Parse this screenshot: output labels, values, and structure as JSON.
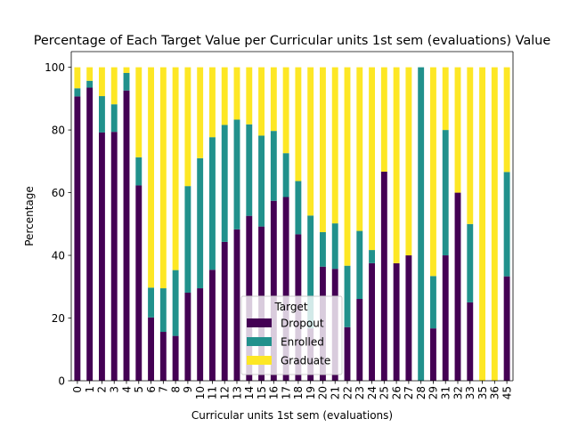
{
  "chart_data": {
    "type": "bar",
    "stacked": true,
    "title": "Percentage of Each Target Value per Curricular units 1st sem (evaluations) Value",
    "xlabel": "Curricular units 1st sem (evaluations)",
    "ylabel": "Percentage",
    "ylim": [
      0,
      105
    ],
    "yticks": [
      0,
      20,
      40,
      60,
      80,
      100
    ],
    "categories": [
      "0",
      "1",
      "2",
      "3",
      "4",
      "5",
      "6",
      "7",
      "8",
      "9",
      "10",
      "11",
      "12",
      "13",
      "14",
      "15",
      "16",
      "17",
      "18",
      "19",
      "20",
      "21",
      "22",
      "23",
      "24",
      "25",
      "26",
      "27",
      "28",
      "29",
      "31",
      "32",
      "33",
      "35",
      "36",
      "45"
    ],
    "series": [
      {
        "name": "Dropout",
        "color": "#440154",
        "values": [
          90.7,
          93.5,
          79.2,
          79.4,
          92.6,
          62.3,
          20.2,
          15.6,
          14.3,
          28.1,
          29.5,
          35.4,
          44.3,
          48.3,
          52.6,
          49.2,
          57.4,
          58.6,
          46.7,
          16.7,
          36.4,
          35.7,
          17.1,
          26.1,
          37.5,
          66.7,
          37.5,
          40.0,
          0.0,
          16.7,
          40.0,
          60.0,
          25.0,
          0.0,
          0.0,
          33.3
        ]
      },
      {
        "name": "Enrolled",
        "color": "#21918c",
        "values": [
          2.6,
          2.2,
          11.6,
          8.8,
          5.6,
          9.0,
          9.5,
          13.9,
          21.0,
          34.0,
          41.5,
          42.3,
          37.3,
          35.0,
          29.2,
          29.0,
          22.3,
          14.0,
          17.0,
          36.0,
          11.0,
          14.5,
          19.6,
          21.7,
          4.2,
          0.0,
          0.0,
          0.0,
          100.0,
          16.7,
          40.0,
          0.0,
          25.0,
          0.0,
          0.0,
          33.3
        ]
      },
      {
        "name": "Graduate",
        "color": "#fde725",
        "values": [
          6.7,
          4.3,
          9.2,
          11.8,
          1.8,
          28.7,
          70.3,
          70.5,
          64.7,
          37.9,
          29.0,
          22.3,
          18.4,
          16.7,
          18.2,
          21.8,
          20.3,
          27.4,
          36.3,
          47.3,
          52.6,
          49.8,
          63.3,
          52.2,
          58.3,
          33.3,
          62.5,
          60.0,
          0.0,
          66.6,
          20.0,
          40.0,
          50.0,
          100.0,
          100.0,
          33.4
        ]
      }
    ],
    "legend": {
      "title": "Target",
      "position": "bottom-center"
    },
    "grid": false
  }
}
